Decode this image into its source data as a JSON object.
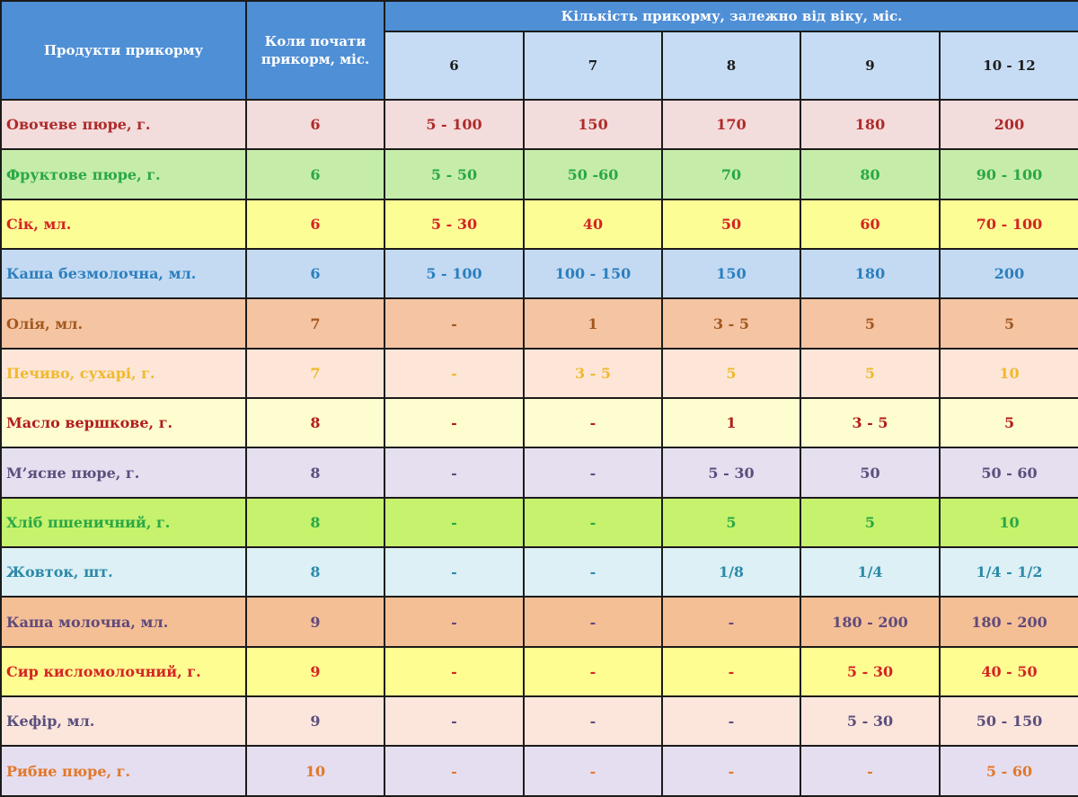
{
  "table": {
    "header": {
      "product_col": "Продукти прикорму",
      "start_col": "Коли почати прикорм, міс.",
      "amount_group": "Кількість прикорму, залежно від віку, міс.",
      "ages": [
        "6",
        "7",
        "8",
        "9",
        "10 - 12"
      ]
    },
    "rows": [
      {
        "product": "Овочеве пюре, г.",
        "start": "6",
        "amounts": [
          "5 - 100",
          "150",
          "170",
          "180",
          "200"
        ],
        "color": "#b02a2a",
        "bg": "#f3dcdc"
      },
      {
        "product": "Фруктове пюре, г.",
        "start": "6",
        "amounts": [
          "5 - 50",
          "50 -60",
          "70",
          "80",
          "90 - 100"
        ],
        "color": "#2aa845",
        "bg": "#c5eda9"
      },
      {
        "product": "Сік, мл.",
        "start": "6",
        "amounts": [
          "5 - 30",
          "40",
          "50",
          "60",
          "70 - 100"
        ],
        "color": "#d42525",
        "bg": "#fdfd96"
      },
      {
        "product": "Каша безмолочна, мл.",
        "start": "6",
        "amounts": [
          "5 - 100",
          "100 - 150",
          "150",
          "180",
          "200"
        ],
        "color": "#2b7fbf",
        "bg": "#c4daf2"
      },
      {
        "product": "Олія, мл.",
        "start": "7",
        "amounts": [
          "-",
          "1",
          "3 - 5",
          "5",
          "5"
        ],
        "color": "#a2581f",
        "bg": "#f5c4a2"
      },
      {
        "product": "Печиво, сухарі, г.",
        "start": "7",
        "amounts": [
          "-",
          "3 - 5",
          "5",
          "5",
          "10"
        ],
        "color": "#f0b92c",
        "bg": "#fde6d8"
      },
      {
        "product": "Масло вершкове, г.",
        "start": "8",
        "amounts": [
          "-",
          "-",
          "1",
          "3 - 5",
          "5"
        ],
        "color": "#b11d1d",
        "bg": "#fefdd0"
      },
      {
        "product": "М’ясне пюре, г.",
        "start": "8",
        "amounts": [
          "-",
          "-",
          "5 - 30",
          "50",
          "50 - 60"
        ],
        "color": "#5b4f7d",
        "bg": "#e5dff0"
      },
      {
        "product": "Хліб пшеничний, г.",
        "start": "8",
        "amounts": [
          "-",
          "-",
          "5",
          "5",
          "10"
        ],
        "color": "#2aa845",
        "bg": "#c6f26d"
      },
      {
        "product": "Жовток, шт.",
        "start": "8",
        "amounts": [
          "-",
          "-",
          "1/8",
          "1/4",
          "1/4 - 1/2"
        ],
        "color": "#2c8aa8",
        "bg": "#dcf0f6"
      },
      {
        "product": "Каша молочна, мл.",
        "start": "9",
        "amounts": [
          "-",
          "-",
          "-",
          "180 - 200",
          "180 - 200"
        ],
        "color": "#5f4a7a",
        "bg": "#f5bf96"
      },
      {
        "product": "Сир кисломолочний, г.",
        "start": "9",
        "amounts": [
          "-",
          "-",
          "-",
          "5 - 30",
          "40 - 50"
        ],
        "color": "#d42525",
        "bg": "#fefd92"
      },
      {
        "product": "Кефір, мл.",
        "start": "9",
        "amounts": [
          "-",
          "-",
          "-",
          "5 - 30",
          "50 - 150"
        ],
        "color": "#5b4f7d",
        "bg": "#fce6dc"
      },
      {
        "product": "Рибне пюре, г.",
        "start": "10",
        "amounts": [
          "-",
          "-",
          "-",
          "-",
          "5 - 60"
        ],
        "color": "#e2782a",
        "bg": "#e5def0"
      }
    ]
  }
}
